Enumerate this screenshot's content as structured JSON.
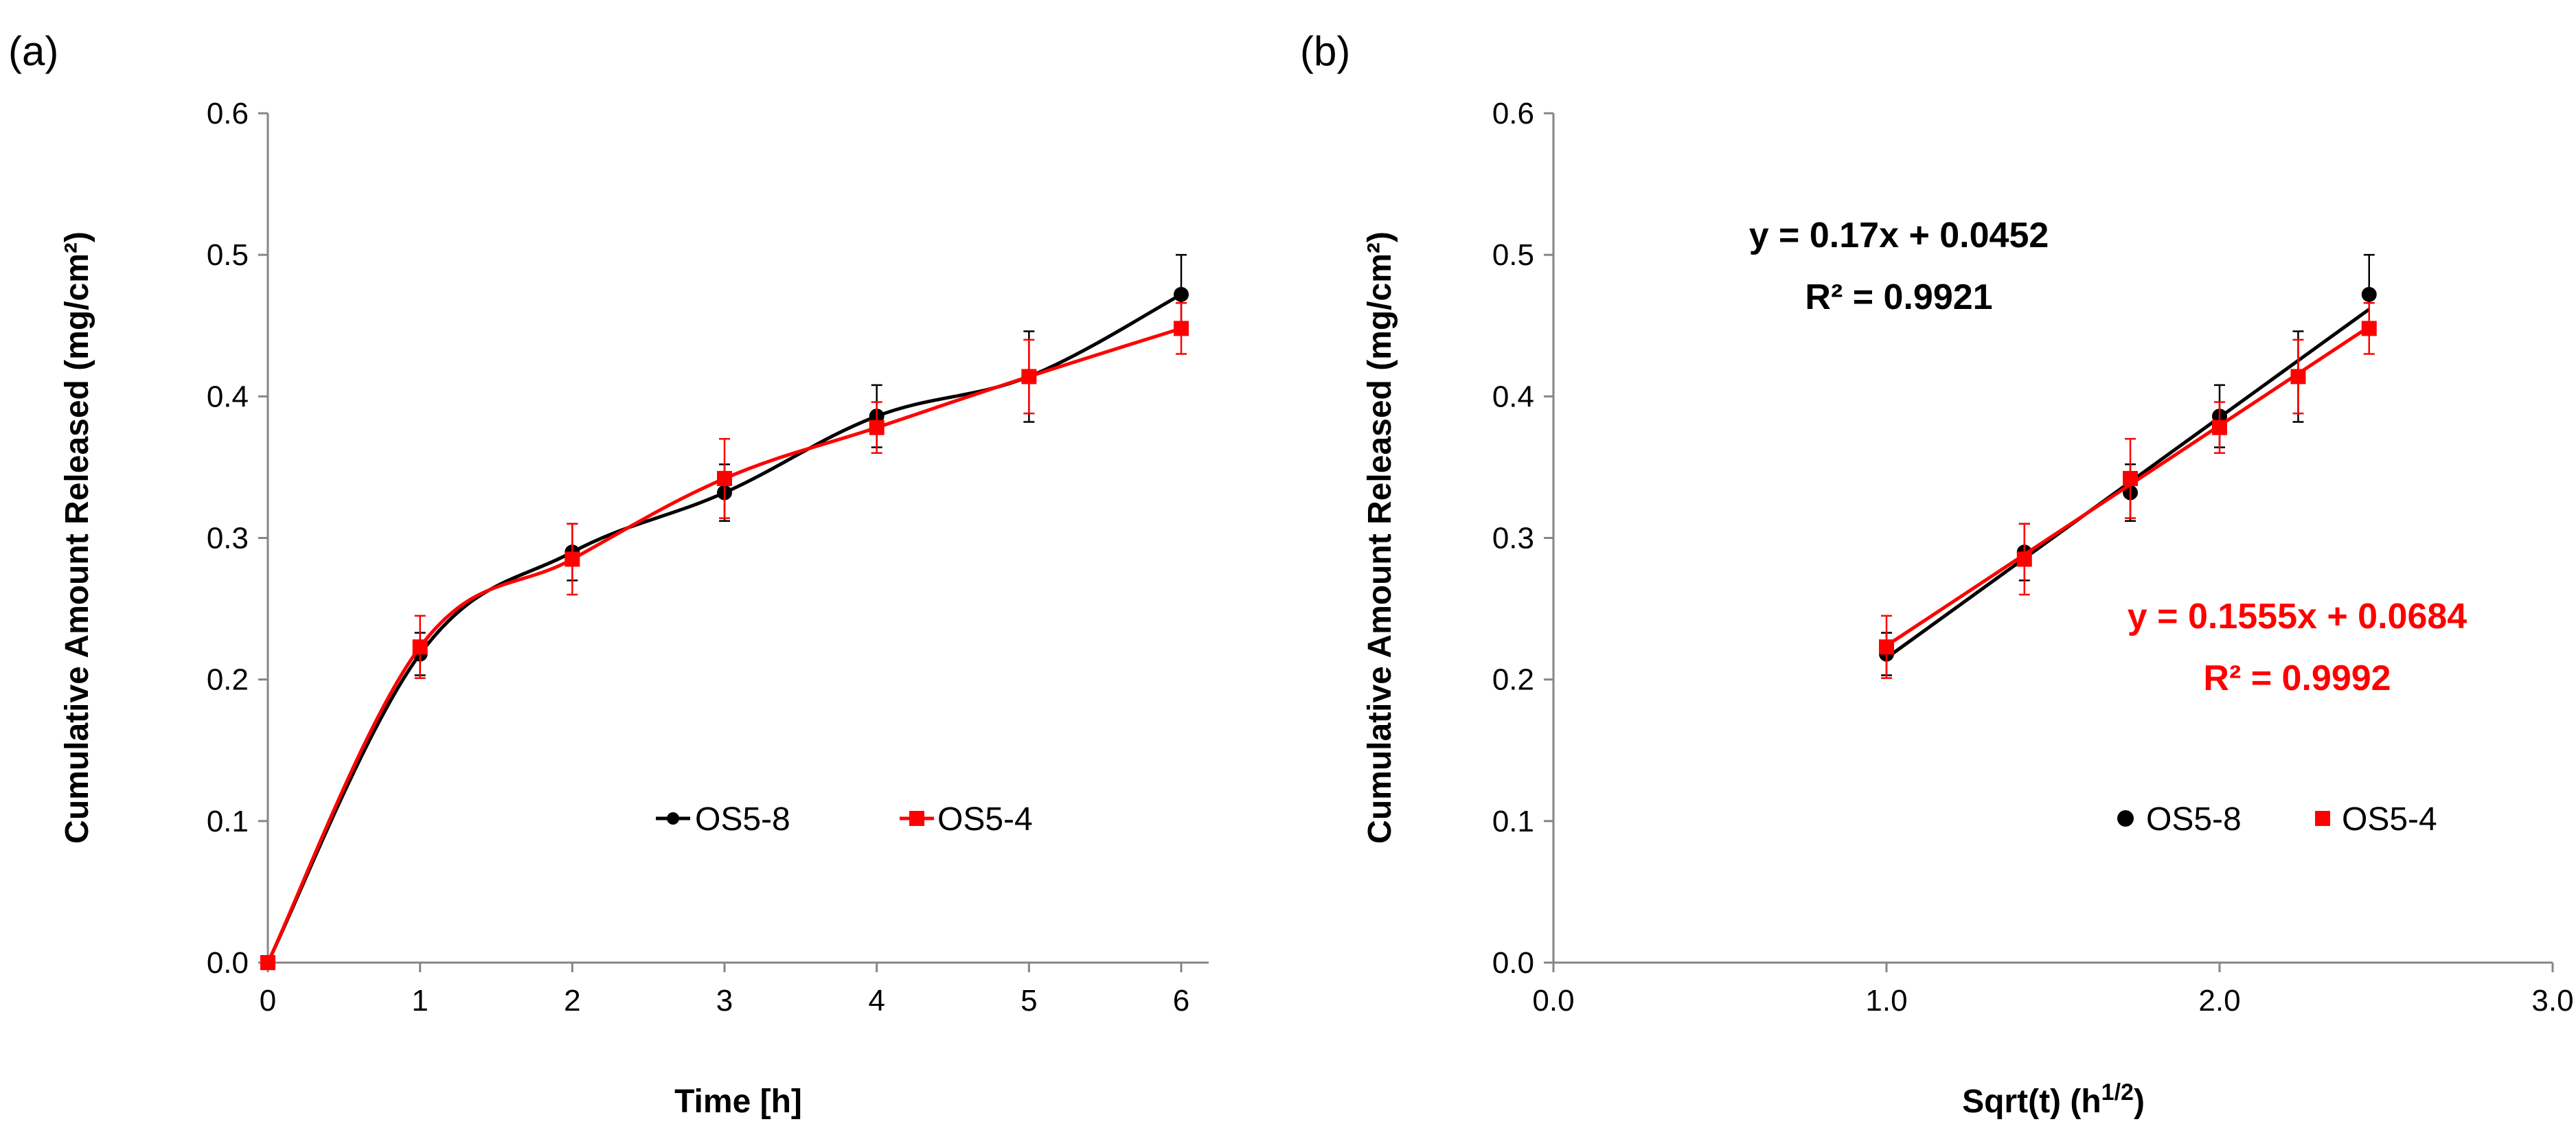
{
  "chart_data": [
    {
      "panel_label": "(a)",
      "type": "line",
      "xlabel": "Time [h]",
      "ylabel": "Cumulative Amount Released (mg/cm²)",
      "xlim": [
        0,
        6
      ],
      "ylim": [
        0,
        0.6
      ],
      "x_ticks": [
        "0",
        "1",
        "2",
        "3",
        "4",
        "5",
        "6"
      ],
      "y_ticks": [
        "0.0",
        "0.1",
        "0.2",
        "0.3",
        "0.4",
        "0.5",
        "0.6"
      ],
      "legend_position": "center-bottom",
      "grid": false,
      "series": [
        {
          "name": "OS5-8",
          "color": "#000000",
          "marker": "circle",
          "x": [
            0,
            1,
            2,
            3,
            4,
            5,
            6
          ],
          "y": [
            0.0,
            0.218,
            0.29,
            0.332,
            0.386,
            0.414,
            0.472
          ],
          "error": [
            0.0,
            0.015,
            0.02,
            0.02,
            0.022,
            0.032,
            0.028
          ]
        },
        {
          "name": "OS5-4",
          "color": "#ff0000",
          "marker": "square",
          "x": [
            0,
            1,
            2,
            3,
            4,
            5,
            6
          ],
          "y": [
            0.0,
            0.223,
            0.285,
            0.342,
            0.378,
            0.414,
            0.448
          ],
          "error": [
            0.0,
            0.022,
            0.025,
            0.028,
            0.018,
            0.026,
            0.018
          ]
        }
      ]
    },
    {
      "panel_label": "(b)",
      "type": "scatter",
      "xlabel": "Sqrt(t) (h",
      "xlabel_sup": "1/2",
      "xlabel_end": ")",
      "ylabel": "Cumulative Amount Released  (mg/cm²)",
      "xlim": [
        0,
        3
      ],
      "ylim": [
        0,
        0.6
      ],
      "x_ticks": [
        "0.0",
        "1.0",
        "2.0",
        "3.0"
      ],
      "y_ticks": [
        "0.0",
        "0.1",
        "0.2",
        "0.3",
        "0.4",
        "0.5",
        "0.6"
      ],
      "legend_position": "bottom-right",
      "grid": false,
      "series": [
        {
          "name": "OS5-8",
          "color": "#000000",
          "marker": "circle",
          "x": [
            1.0,
            1.414,
            1.732,
            2.0,
            2.236,
            2.449
          ],
          "y": [
            0.218,
            0.29,
            0.332,
            0.386,
            0.414,
            0.472
          ],
          "error": [
            0.015,
            0.02,
            0.02,
            0.022,
            0.032,
            0.028
          ],
          "fit": {
            "slope": 0.17,
            "intercept": 0.0452,
            "x_range": [
              1.0,
              2.449
            ]
          }
        },
        {
          "name": "OS5-4",
          "color": "#ff0000",
          "marker": "square",
          "x": [
            1.0,
            1.414,
            1.732,
            2.0,
            2.236,
            2.449
          ],
          "y": [
            0.223,
            0.285,
            0.342,
            0.378,
            0.414,
            0.448
          ],
          "error": [
            0.022,
            0.025,
            0.028,
            0.018,
            0.026,
            0.018
          ],
          "fit": {
            "slope": 0.1555,
            "intercept": 0.0684,
            "x_range": [
              1.0,
              2.449
            ]
          }
        }
      ],
      "annotations": [
        {
          "id": "eq-black",
          "lines": [
            "y = 0.17x + 0.0452",
            "R² = 0.9921"
          ],
          "color": "#000000"
        },
        {
          "id": "eq-red",
          "lines": [
            "y = 0.1555x + 0.0684",
            "R² = 0.9992"
          ],
          "color": "#ff0000"
        }
      ]
    }
  ]
}
